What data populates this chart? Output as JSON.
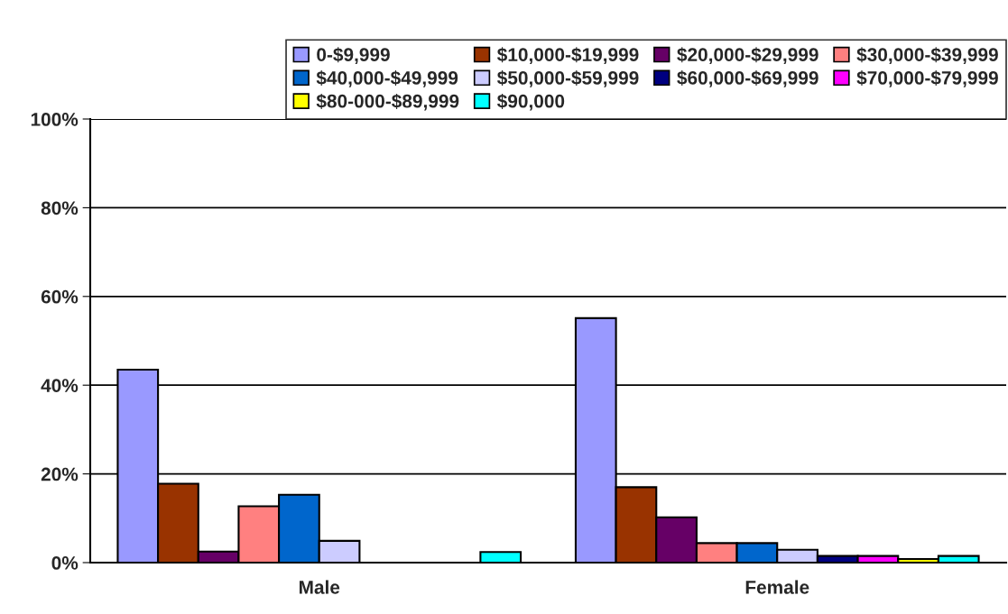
{
  "chart_data": {
    "type": "bar",
    "categories": [
      "Male",
      "Female"
    ],
    "series": [
      {
        "name": "0-$9,999",
        "color": "#9999ff",
        "values": [
          43.5,
          55.1
        ]
      },
      {
        "name": "$10,000-$19,999",
        "color": "#993300",
        "values": [
          17.8,
          17.0
        ]
      },
      {
        "name": "$20,000-$29,999",
        "color": "#660066",
        "values": [
          2.5,
          10.2
        ]
      },
      {
        "name": "$30,000-$39,999",
        "color": "#ff8080",
        "values": [
          12.7,
          4.4
        ]
      },
      {
        "name": "$40,000-$49,999",
        "color": "#0066cc",
        "values": [
          15.3,
          4.4
        ]
      },
      {
        "name": "$50,000-$59,999",
        "color": "#ccccff",
        "values": [
          4.9,
          2.9
        ]
      },
      {
        "name": "$60,000-$69,999",
        "color": "#000080",
        "values": [
          0,
          1.5
        ]
      },
      {
        "name": "$70,000-$79,999",
        "color": "#ff00ff",
        "values": [
          0,
          1.5
        ]
      },
      {
        "name": "$80-000-$89,999",
        "color": "#ffff00",
        "values": [
          0,
          0.8
        ]
      },
      {
        "name": "$90,000",
        "color": "#00ffff",
        "values": [
          2.4,
          1.5
        ]
      }
    ],
    "ylim": [
      0,
      100
    ],
    "yticks": [
      {
        "value": 0,
        "label": "0%"
      },
      {
        "value": 20,
        "label": "20%"
      },
      {
        "value": 40,
        "label": "40%"
      },
      {
        "value": 60,
        "label": "60%"
      },
      {
        "value": 80,
        "label": "80%"
      },
      {
        "value": 100,
        "label": "100%"
      }
    ],
    "grid": "y",
    "legend": "top"
  }
}
